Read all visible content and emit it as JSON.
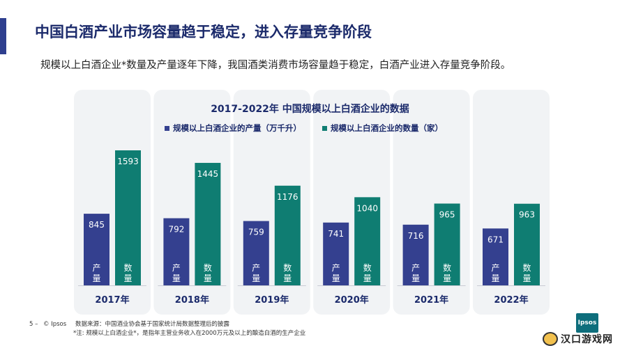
{
  "title": "中国白酒产业市场容量趋于稳定，进入存量竞争阶段",
  "subtitle": "规模以上白酒企业*数量及产量逐年下降，我国酒类消费市场容量趋于稳定，白酒产业进入存量竞争阶段。",
  "footer": {
    "page": "5 –",
    "copyright": "© Ipsos",
    "source": "数据来源：中国酒业协会基于国家统计局数据整理后的披露",
    "note": "*注:   规模以上白酒企业*，是指年主营业务收入在2000万元及以上的酿造白酒的生产企业"
  },
  "logo_text": "Ipsos",
  "watermark_text": "汉口游戏网",
  "colors": {
    "production": "#34408f",
    "count": "#0f7d72",
    "panel": "#f1f3f5",
    "title": "#1b2a6b"
  },
  "chart_data": {
    "type": "bar",
    "title": "2017-2022年 中国规模以上白酒企业的数据",
    "categories": [
      "2017年",
      "2018年",
      "2019年",
      "2020年",
      "2021年",
      "2022年"
    ],
    "series": [
      {
        "name": "规模以上白酒企业的产量（万千升）",
        "bar_label": "产量",
        "values": [
          845,
          792,
          759,
          741,
          716,
          671
        ]
      },
      {
        "name": "规模以上白酒企业的数量（家）",
        "bar_label": "数量",
        "values": [
          1593,
          1445,
          1176,
          1040,
          965,
          963
        ]
      }
    ],
    "ylim": [
      0,
      1800
    ],
    "legend_position": "top",
    "grid": false
  }
}
